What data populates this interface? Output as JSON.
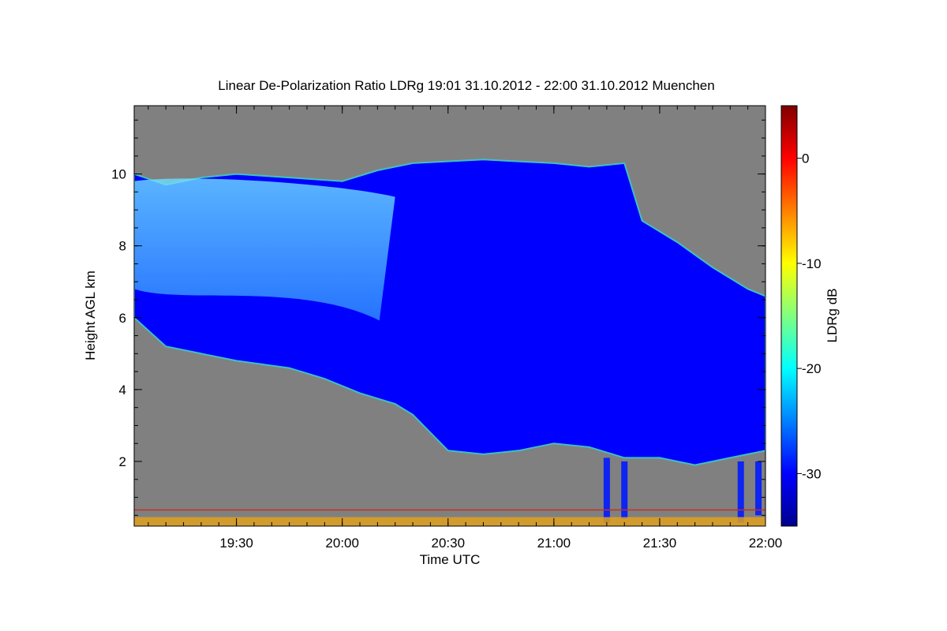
{
  "chart_data": {
    "type": "heatmap",
    "title": "Linear De-Polarization Ratio LDRg   19:01 31.10.2012 - 22:00 31.10.2012 Muenchen",
    "xlabel": "Time UTC",
    "ylabel": "Height AGL km",
    "colorbar_label": "LDRg dB",
    "xlim": [
      "19:01",
      "22:00"
    ],
    "ylim": [
      0.2,
      11.9
    ],
    "x_ticks": [
      "19:30",
      "20:00",
      "20:30",
      "21:00",
      "21:30",
      "22:00"
    ],
    "y_ticks": [
      "2",
      "4",
      "6",
      "8",
      "10"
    ],
    "colorbar_range": [
      -35,
      5
    ],
    "colorbar_ticks": [
      "0",
      "-10",
      "-20",
      "-30"
    ],
    "colorscale": [
      "#00008f",
      "#0000ff",
      "#0080ff",
      "#00ffff",
      "#80ff80",
      "#ffff00",
      "#ff8000",
      "#ff0000",
      "#800000"
    ],
    "background_color": "#808080",
    "cloud_outline": {
      "top_km": [
        [
          "19:01",
          10.0
        ],
        [
          "19:10",
          9.7
        ],
        [
          "19:20",
          9.9
        ],
        [
          "19:30",
          10.0
        ],
        [
          "19:45",
          9.9
        ],
        [
          "20:00",
          9.8
        ],
        [
          "20:10",
          10.1
        ],
        [
          "20:20",
          10.3
        ],
        [
          "20:40",
          10.4
        ],
        [
          "21:00",
          10.3
        ],
        [
          "21:10",
          10.2
        ],
        [
          "21:20",
          10.3
        ],
        [
          "21:25",
          8.7
        ],
        [
          "21:35",
          8.1
        ],
        [
          "21:45",
          7.4
        ],
        [
          "21:55",
          6.8
        ],
        [
          "22:00",
          6.6
        ]
      ],
      "base_km": [
        [
          "19:01",
          6.0
        ],
        [
          "19:10",
          5.2
        ],
        [
          "19:20",
          5.0
        ],
        [
          "19:30",
          4.8
        ],
        [
          "19:45",
          4.6
        ],
        [
          "19:55",
          4.3
        ],
        [
          "20:05",
          3.9
        ],
        [
          "20:15",
          3.6
        ],
        [
          "20:20",
          3.3
        ],
        [
          "20:25",
          2.8
        ],
        [
          "20:30",
          2.3
        ],
        [
          "20:40",
          2.2
        ],
        [
          "20:50",
          2.3
        ],
        [
          "21:00",
          2.5
        ],
        [
          "21:10",
          2.4
        ],
        [
          "21:20",
          2.1
        ],
        [
          "21:30",
          2.1
        ],
        [
          "21:40",
          1.9
        ],
        [
          "21:50",
          2.1
        ],
        [
          "22:00",
          2.3
        ]
      ],
      "typical_ldr_db": -30
    },
    "depolarizing_layer": {
      "from": "19:01",
      "to": "20:15",
      "bottom_km": 6.8,
      "top_km": 9.8,
      "typical_ldr_db": -20
    },
    "fall_streaks": [
      {
        "time": "21:15",
        "bottom_km": 0.3,
        "top_km": 2.1
      },
      {
        "time": "21:20",
        "bottom_km": 0.4,
        "top_km": 2.0
      },
      {
        "time": "21:53",
        "bottom_km": 0.3,
        "top_km": 2.0
      },
      {
        "time": "21:58",
        "bottom_km": 0.5,
        "top_km": 2.0
      }
    ],
    "reference_line_km": 0.65,
    "reference_line_color": "#c03020"
  }
}
